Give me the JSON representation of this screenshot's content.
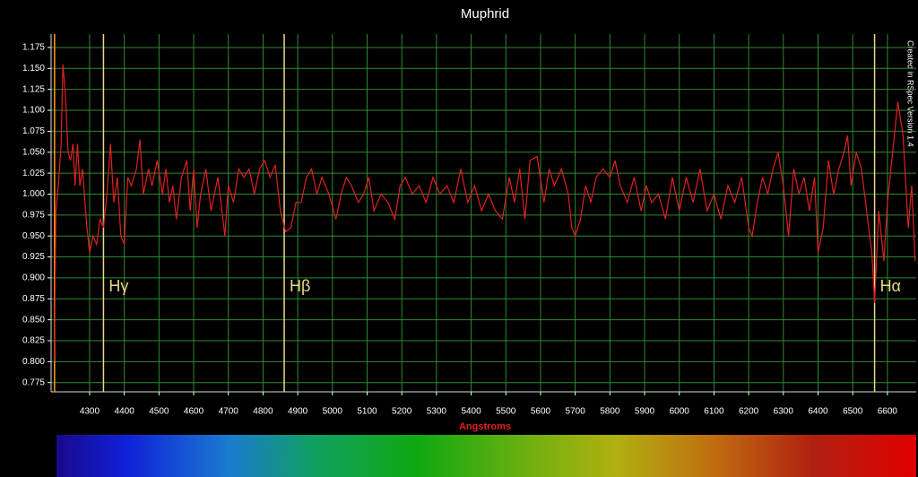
{
  "chart_data": {
    "type": "line",
    "title": "Muphrid",
    "xlabel": "Angstroms",
    "credit": "Created in RSpec Version 1.4",
    "color": "#e02020",
    "grid": true,
    "xlim": [
      4189,
      6683
    ],
    "ylim": [
      0.764,
      1.191
    ],
    "xticks": [
      4300,
      4400,
      4500,
      4600,
      4700,
      4800,
      4900,
      5000,
      5100,
      5200,
      5300,
      5400,
      5500,
      5600,
      5700,
      5800,
      5900,
      6000,
      6100,
      6200,
      6300,
      6400,
      6500,
      6600
    ],
    "yticks": [
      0.775,
      {
        "value": 0.8,
        "label": "0.800"
      },
      0.825,
      {
        "value": 0.85,
        "label": "0.850"
      },
      0.875,
      {
        "value": 0.9,
        "label": "0.900"
      },
      0.925,
      {
        "value": 0.95,
        "label": "0.950"
      },
      0.975,
      {
        "value": 1,
        "label": "1.000"
      },
      1.025,
      {
        "value": 1.05,
        "label": "1.050"
      },
      1.075,
      {
        "value": 1.1,
        "label": "1.100"
      },
      1.125,
      {
        "value": 1.15,
        "label": "1.150"
      },
      1.175
    ],
    "annotations": [
      {
        "x": 4199,
        "color": "#ff9a20"
      },
      {
        "x": 4340,
        "label": "Hγ",
        "color": "#ead98a"
      },
      {
        "x": 4861,
        "label": "Hβ",
        "color": "#ead98a"
      },
      {
        "x": 6563,
        "label": "Hα",
        "color": "#ead98a"
      }
    ],
    "x": [
      4198,
      4203,
      4210,
      4218,
      4223,
      4230,
      4238,
      4245,
      4252,
      4258,
      4265,
      4272,
      4280,
      4290,
      4300,
      4310,
      4320,
      4330,
      4340,
      4350,
      4360,
      4370,
      4380,
      4390,
      4400,
      4410,
      4420,
      4435,
      4445,
      4455,
      4470,
      4480,
      4495,
      4510,
      4520,
      4530,
      4540,
      4550,
      4565,
      4580,
      4590,
      4600,
      4610,
      4620,
      4635,
      4650,
      4670,
      4690,
      4700,
      4715,
      4730,
      4745,
      4760,
      4775,
      4790,
      4805,
      4820,
      4835,
      4850,
      4865,
      4880,
      4895,
      4910,
      4925,
      4940,
      4955,
      4970,
      4990,
      5010,
      5025,
      5040,
      5055,
      5075,
      5090,
      5105,
      5120,
      5140,
      5160,
      5180,
      5195,
      5210,
      5230,
      5250,
      5270,
      5290,
      5310,
      5330,
      5350,
      5370,
      5390,
      5410,
      5430,
      5450,
      5470,
      5490,
      5510,
      5525,
      5540,
      5555,
      5570,
      5590,
      5610,
      5625,
      5640,
      5660,
      5680,
      5690,
      5700,
      5715,
      5730,
      5745,
      5760,
      5780,
      5800,
      5815,
      5830,
      5850,
      5870,
      5890,
      5905,
      5920,
      5940,
      5960,
      5980,
      6000,
      6020,
      6040,
      6060,
      6080,
      6100,
      6120,
      6140,
      6160,
      6180,
      6200,
      6210,
      6225,
      6240,
      6255,
      6270,
      6285,
      6300,
      6315,
      6330,
      6345,
      6360,
      6375,
      6390,
      6400,
      6415,
      6430,
      6445,
      6460,
      6475,
      6485,
      6495,
      6510,
      6525,
      6540,
      6555,
      6563,
      6575,
      6590,
      6600,
      6615,
      6630,
      6645,
      6660,
      6670,
      6680
    ],
    "values": [
      0.8,
      0.98,
      1.01,
      1.06,
      1.155,
      1.12,
      1.05,
      1.04,
      1.06,
      1.01,
      1.06,
      1.01,
      1.03,
      0.97,
      0.93,
      0.95,
      0.94,
      0.97,
      0.96,
      1.0,
      1.06,
      0.99,
      1.02,
      0.95,
      0.94,
      1.02,
      1.01,
      1.03,
      1.065,
      1.0,
      1.03,
      1.01,
      1.04,
      1.0,
      1.03,
      0.99,
      1.01,
      0.97,
      1.02,
      1.04,
      0.98,
      1.03,
      0.96,
      1.0,
      1.03,
      0.98,
      1.02,
      0.95,
      1.01,
      0.99,
      1.03,
      1.02,
      1.03,
      1.0,
      1.03,
      1.04,
      1.02,
      1.035,
      0.98,
      0.955,
      0.96,
      0.99,
      0.99,
      1.02,
      1.03,
      1.0,
      1.02,
      1.0,
      0.97,
      1.0,
      1.02,
      1.01,
      0.99,
      1.0,
      1.02,
      0.98,
      1.0,
      0.99,
      0.97,
      1.01,
      1.02,
      1.0,
      1.01,
      0.99,
      1.02,
      1.0,
      1.01,
      0.99,
      1.03,
      0.99,
      1.01,
      0.98,
      1.0,
      0.98,
      0.97,
      1.02,
      0.99,
      1.03,
      0.97,
      1.04,
      1.045,
      0.99,
      1.03,
      1.01,
      1.03,
      1.0,
      0.96,
      0.95,
      0.97,
      1.01,
      0.99,
      1.02,
      1.03,
      1.02,
      1.04,
      1.01,
      0.99,
      1.02,
      0.98,
      1.01,
      0.99,
      1.0,
      0.97,
      1.02,
      0.98,
      1.02,
      0.99,
      1.03,
      0.98,
      1.0,
      0.97,
      1.01,
      0.99,
      1.02,
      0.96,
      0.95,
      0.99,
      1.02,
      1.0,
      1.03,
      1.05,
      1.01,
      0.95,
      1.03,
      1.0,
      1.02,
      0.98,
      1.02,
      0.93,
      0.96,
      1.04,
      1.0,
      1.03,
      1.05,
      1.07,
      1.01,
      1.05,
      1.03,
      0.98,
      0.93,
      0.87,
      0.98,
      0.92,
      0.99,
      1.05,
      1.11,
      1.07,
      0.96,
      1.01,
      0.92
    ]
  }
}
